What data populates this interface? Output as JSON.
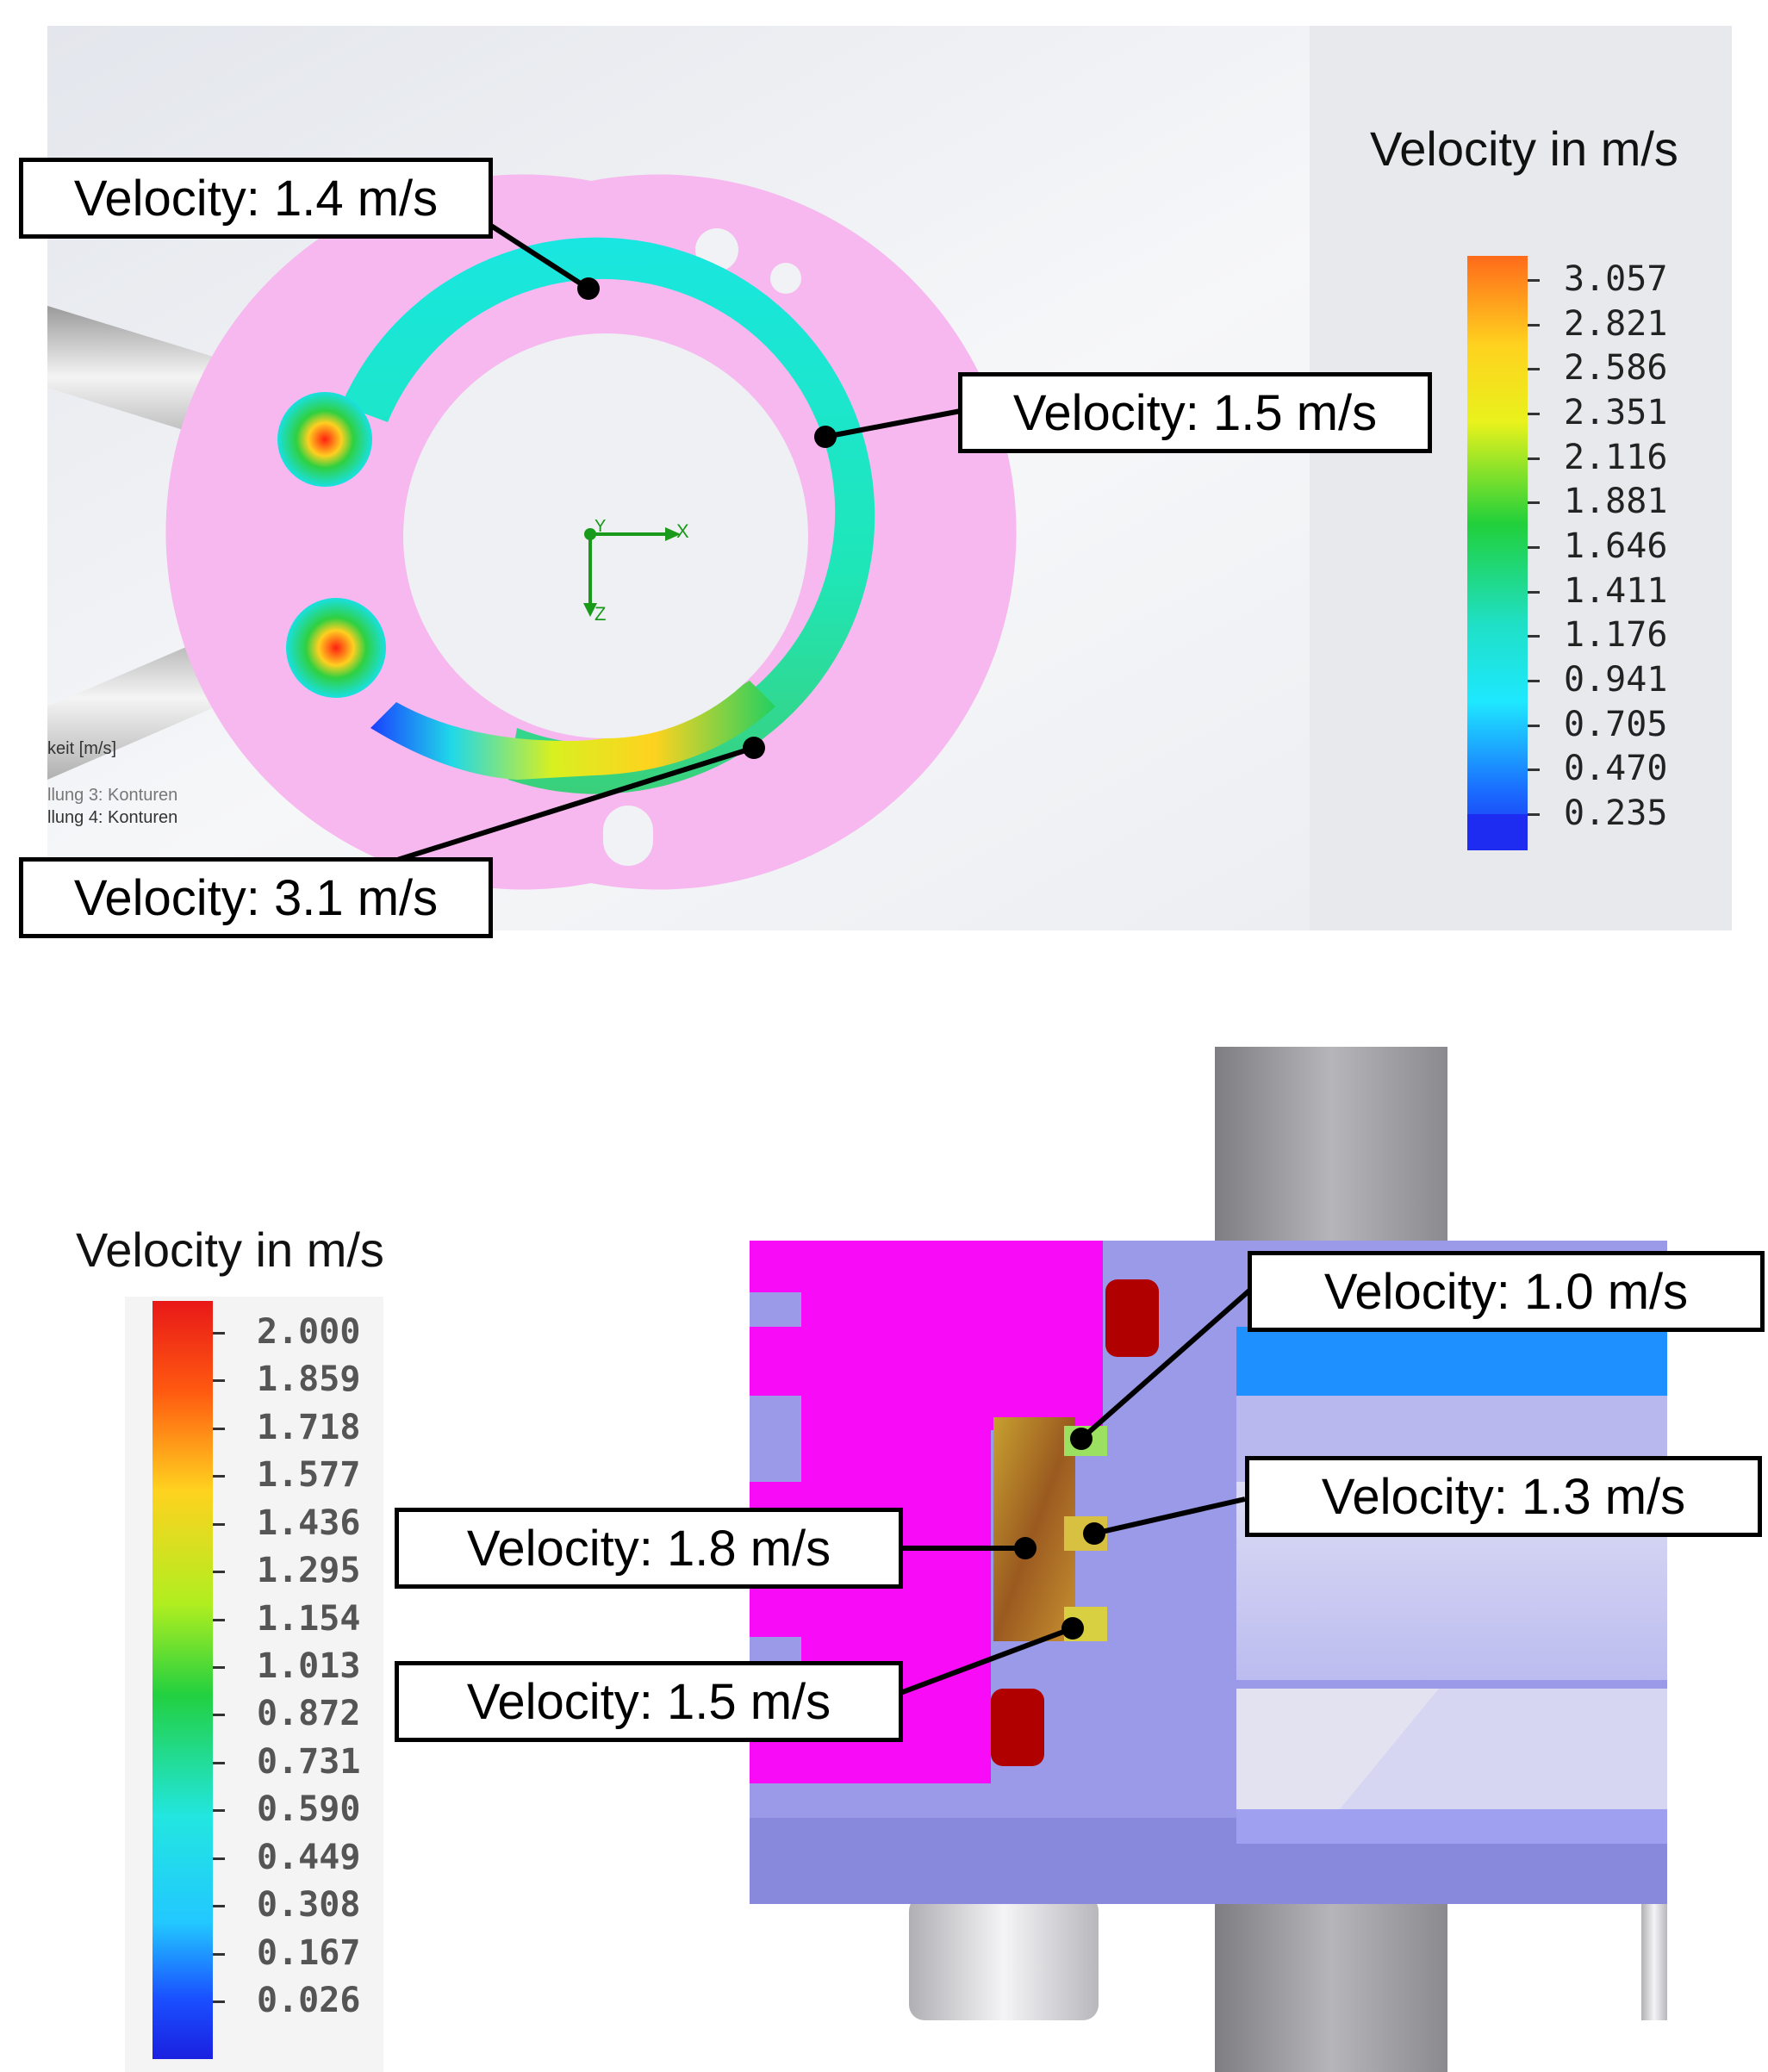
{
  "top_panel": {
    "legend": {
      "title": "Velocity in m/s",
      "ticks": [
        "3.057",
        "2.821",
        "2.586",
        "2.351",
        "2.116",
        "1.881",
        "1.646",
        "1.411",
        "1.176",
        "0.941",
        "0.705",
        "0.470",
        "0.235"
      ]
    },
    "callouts": [
      {
        "text": "Velocity: 1.4 m/s"
      },
      {
        "text": "Velocity: 1.5 m/s"
      },
      {
        "text": "Velocity: 3.1 m/s"
      }
    ],
    "axis_labels": {
      "x": "X",
      "y": "Y",
      "z": "Z"
    },
    "software_text": [
      "keit [m/s]",
      "llung 3: Konturen",
      "llung 4: Konturen"
    ]
  },
  "bottom_panel": {
    "legend": {
      "title": "Velocity in m/s",
      "ticks": [
        "2.000",
        "1.859",
        "1.718",
        "1.577",
        "1.436",
        "1.295",
        "1.154",
        "1.013",
        "0.872",
        "0.731",
        "0.590",
        "0.449",
        "0.308",
        "0.167",
        "0.026"
      ]
    },
    "callouts": [
      {
        "text": "Velocity: 1.0 m/s"
      },
      {
        "text": "Velocity: 1.3 m/s"
      },
      {
        "text": "Velocity: 1.8 m/s"
      },
      {
        "text": "Velocity: 1.5 m/s"
      }
    ]
  }
}
